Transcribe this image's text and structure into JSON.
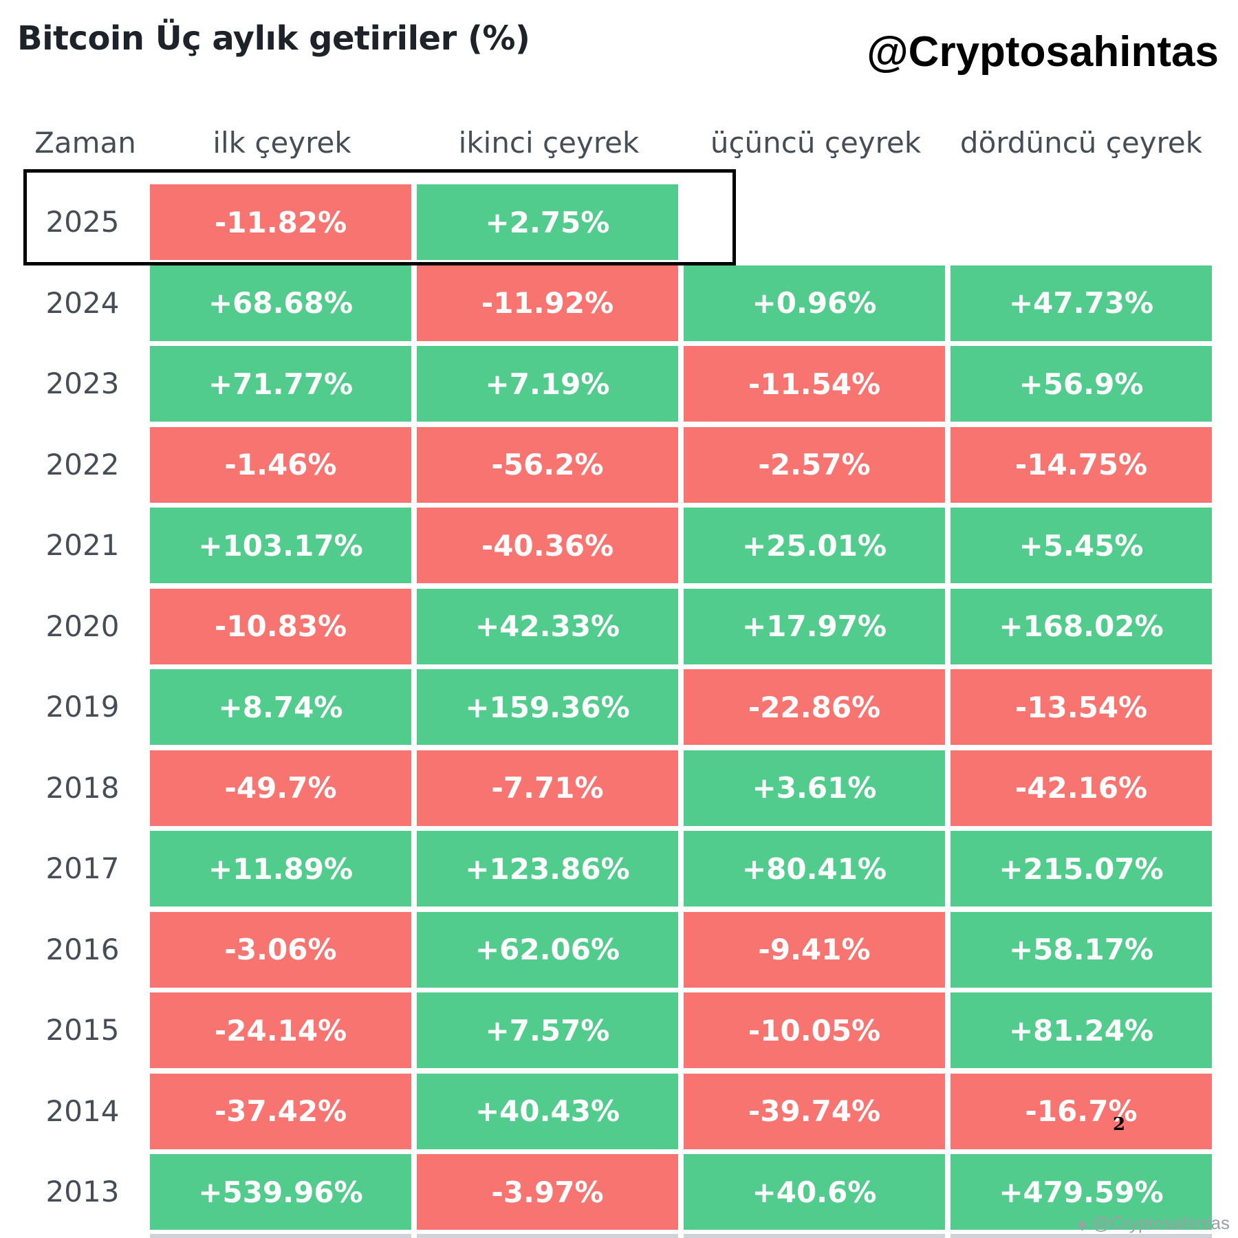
{
  "header": {
    "title": "Bitcoin Üç aylık getiriler (%)",
    "handle": "@Cryptosahintas"
  },
  "colors": {
    "positive": "#52cc8c",
    "negative": "#f77471",
    "highlight_border": "#000000"
  },
  "chart_data": {
    "type": "table",
    "title": "Bitcoin Üç aylık getiriler (%)",
    "columns": [
      "Zaman",
      "ilk çeyrek",
      "ikinci çeyrek",
      "üçüncü çeyrek",
      "dördüncü çeyrek"
    ],
    "rows": [
      {
        "year": "2025",
        "values": [
          "-11.82%",
          "+2.75%",
          "",
          ""
        ],
        "highlighted": true
      },
      {
        "year": "2024",
        "values": [
          "+68.68%",
          "-11.92%",
          "+0.96%",
          "+47.73%"
        ]
      },
      {
        "year": "2023",
        "values": [
          "+71.77%",
          "+7.19%",
          "-11.54%",
          "+56.9%"
        ]
      },
      {
        "year": "2022",
        "values": [
          "-1.46%",
          "-56.2%",
          "-2.57%",
          "-14.75%"
        ]
      },
      {
        "year": "2021",
        "values": [
          "+103.17%",
          "-40.36%",
          "+25.01%",
          "+5.45%"
        ]
      },
      {
        "year": "2020",
        "values": [
          "-10.83%",
          "+42.33%",
          "+17.97%",
          "+168.02%"
        ]
      },
      {
        "year": "2019",
        "values": [
          "+8.74%",
          "+159.36%",
          "-22.86%",
          "-13.54%"
        ]
      },
      {
        "year": "2018",
        "values": [
          "-49.7%",
          "-7.71%",
          "+3.61%",
          "-42.16%"
        ]
      },
      {
        "year": "2017",
        "values": [
          "+11.89%",
          "+123.86%",
          "+80.41%",
          "+215.07%"
        ]
      },
      {
        "year": "2016",
        "values": [
          "-3.06%",
          "+62.06%",
          "-9.41%",
          "+58.17%"
        ]
      },
      {
        "year": "2015",
        "values": [
          "-24.14%",
          "+7.57%",
          "-10.05%",
          "+81.24%"
        ]
      },
      {
        "year": "2014",
        "values": [
          "-37.42%",
          "+40.43%",
          "-39.74%",
          "-16.7%"
        ]
      },
      {
        "year": "2013",
        "values": [
          "+539.96%",
          "-3.97%",
          "+40.6%",
          "+479.59%"
        ]
      }
    ]
  },
  "page_number": "2",
  "watermark": {
    "icon": "binance-diamond-icon",
    "text": "@Cryptosahintas"
  }
}
